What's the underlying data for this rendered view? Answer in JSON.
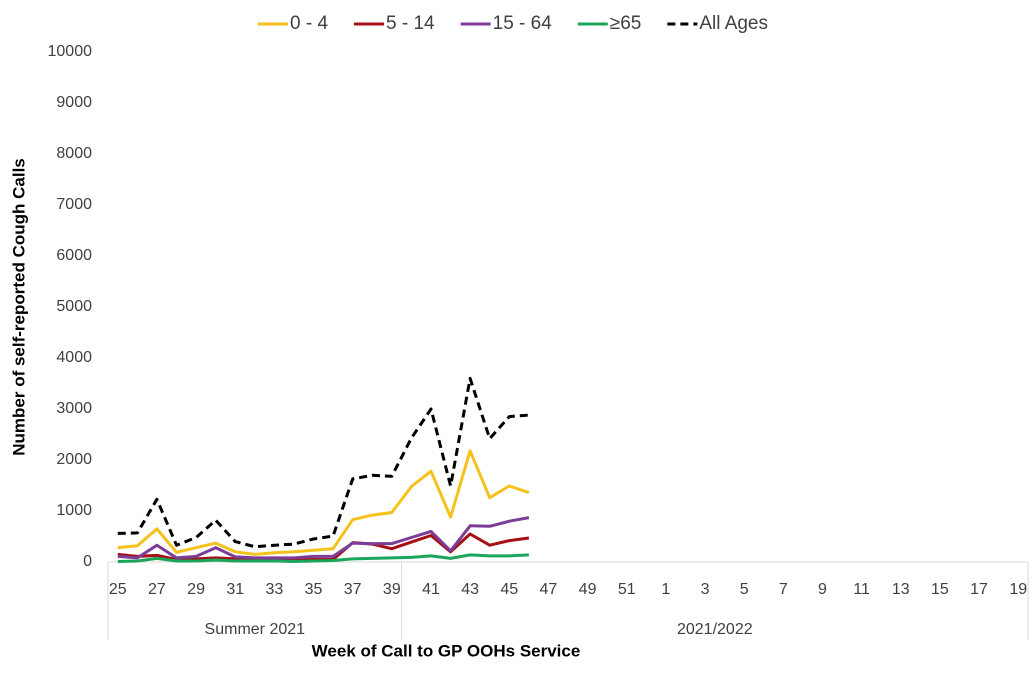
{
  "chart_data": {
    "type": "line",
    "x_label": "Week of Call to GP OOHs Service",
    "y_label": "Number of self-reported Cough Calls",
    "categories": [
      "25",
      null,
      "27",
      null,
      "29",
      null,
      "31",
      null,
      "33",
      null,
      "35",
      null,
      "37",
      null,
      "39",
      null,
      "41",
      null,
      "43",
      null,
      "45",
      null,
      "47",
      null,
      "49",
      null,
      "51",
      null,
      "1",
      null,
      "3",
      null,
      "5",
      null,
      "7",
      null,
      "9",
      null,
      "11",
      null,
      "13",
      null,
      "15",
      null,
      "17",
      null,
      "19"
    ],
    "groups": [
      "Summer 2021",
      "2021/2022"
    ],
    "ylim": [
      0,
      10000
    ],
    "yticks": [
      0,
      1000,
      2000,
      3000,
      4000,
      5000,
      6000,
      7000,
      8000,
      9000,
      10000
    ],
    "grid": false,
    "legend": "top",
    "series": [
      {
        "name": "0 - 4",
        "color": "#f5c21b",
        "values": [
          280,
          320,
          650,
          190,
          280,
          370,
          200,
          150,
          180,
          200,
          230,
          260,
          830,
          920,
          970,
          1480,
          1780,
          880,
          2180,
          1260,
          1490,
          1360,
          null,
          null,
          null,
          null,
          null,
          null,
          null,
          null,
          null,
          null,
          null,
          null,
          null,
          null,
          null,
          null,
          null,
          null,
          null,
          null,
          null,
          null,
          null,
          null,
          null
        ]
      },
      {
        "name": "5 - 14",
        "color": "#a50f15",
        "values": [
          150,
          110,
          130,
          50,
          60,
          80,
          60,
          50,
          50,
          40,
          50,
          50,
          380,
          350,
          260,
          390,
          520,
          200,
          550,
          330,
          420,
          470,
          null,
          null,
          null,
          null,
          null,
          null,
          null,
          null,
          null,
          null,
          null,
          null,
          null,
          null,
          null,
          null,
          null,
          null,
          null,
          null,
          null,
          null,
          null,
          null,
          null
        ]
      },
      {
        "name": "15 - 64",
        "color": "#7d3c98",
        "values": [
          110,
          80,
          330,
          80,
          110,
          280,
          100,
          80,
          80,
          80,
          110,
          110,
          370,
          360,
          360,
          480,
          600,
          220,
          710,
          700,
          800,
          870,
          null,
          null,
          null,
          null,
          null,
          null,
          null,
          null,
          null,
          null,
          null,
          null,
          null,
          null,
          null,
          null,
          null,
          null,
          null,
          null,
          null,
          null,
          null,
          null,
          null
        ]
      },
      {
        "name": "≥65",
        "color": "#1aa55a",
        "values": [
          10,
          20,
          70,
          20,
          20,
          40,
          20,
          20,
          20,
          10,
          20,
          30,
          60,
          70,
          80,
          90,
          120,
          70,
          140,
          120,
          120,
          140,
          null,
          null,
          null,
          null,
          null,
          null,
          null,
          null,
          null,
          null,
          null,
          null,
          null,
          null,
          null,
          null,
          null,
          null,
          null,
          null,
          null,
          null,
          null,
          null,
          null
        ]
      },
      {
        "name": "All Ages",
        "color": "#000000",
        "dash": true,
        "values": [
          560,
          570,
          1230,
          330,
          480,
          820,
          400,
          300,
          330,
          350,
          450,
          510,
          1630,
          1700,
          1680,
          2430,
          3000,
          1490,
          3600,
          2420,
          2850,
          2880,
          null,
          null,
          null,
          null,
          null,
          null,
          null,
          null,
          null,
          null,
          null,
          null,
          null,
          null,
          null,
          null,
          null,
          null,
          null,
          null,
          null,
          null,
          null,
          null,
          null
        ]
      }
    ]
  }
}
